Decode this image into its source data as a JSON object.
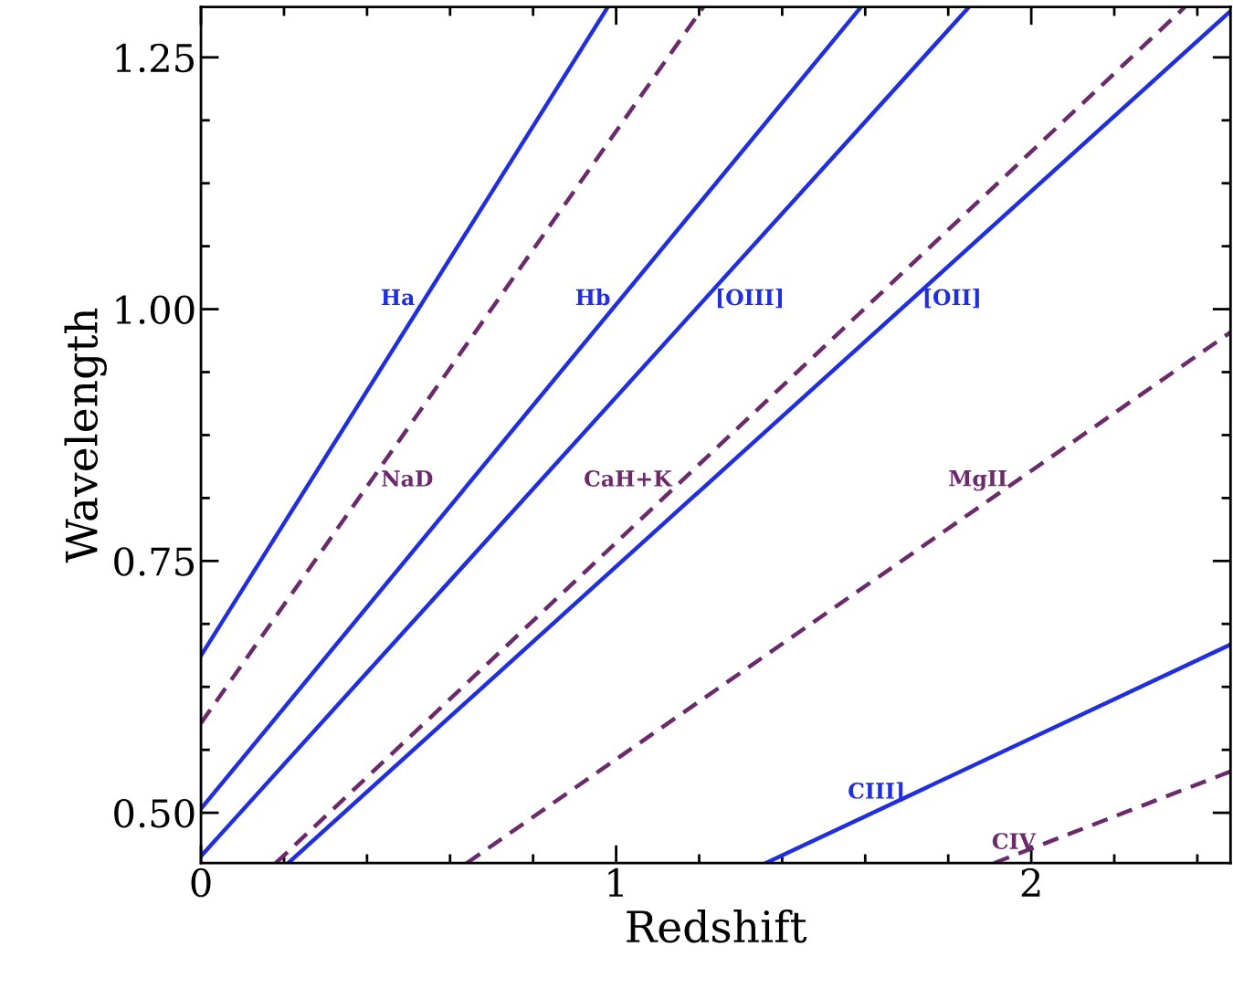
{
  "chart_data": {
    "type": "line",
    "xlabel": "Redshift",
    "ylabel": "Wavelength",
    "xlim": [
      0,
      2.48
    ],
    "ylim": [
      0.45,
      1.3
    ],
    "xticks": [
      0,
      1,
      2
    ],
    "yticks": [
      {
        "value": 0.5,
        "label": "0.50"
      },
      {
        "value": 0.75,
        "label": "0.75"
      },
      {
        "value": 1.0,
        "label": "1.00"
      },
      {
        "value": 1.25,
        "label": "1.25"
      }
    ],
    "grid": false,
    "legend": false,
    "marker": "none",
    "series": [
      {
        "color": "#1f2ee0",
        "line_style": "solid",
        "x": [
          0,
          0.98
        ],
        "values": [
          0.656,
          1.3
        ]
      },
      {
        "color": "#6b2a6b",
        "line_style": "dashed",
        "x": [
          0,
          1.21
        ],
        "values": [
          0.589,
          1.3
        ]
      },
      {
        "color": "#1f2ee0",
        "line_style": "solid",
        "x": [
          0,
          1.59
        ],
        "values": [
          0.504,
          1.3
        ]
      },
      {
        "color": "#1f2ee0",
        "line_style": "solid",
        "x": [
          0,
          1.85
        ],
        "values": [
          0.457,
          1.3
        ]
      },
      {
        "color": "#6b2a6b",
        "line_style": "dashed",
        "x": [
          0.18,
          2.37
        ],
        "values": [
          0.45,
          1.3
        ]
      },
      {
        "color": "#1f2ee0",
        "line_style": "solid",
        "x": [
          0.21,
          2.48
        ],
        "values": [
          0.45,
          1.296
        ]
      },
      {
        "color": "#6b2a6b",
        "line_style": "dashed",
        "x": [
          0.64,
          2.48
        ],
        "values": [
          0.45,
          0.977
        ]
      },
      {
        "color": "#1f2ee0",
        "line_style": "solid",
        "x": [
          1.36,
          2.48
        ],
        "values": [
          0.45,
          0.667
        ]
      },
      {
        "color": "#6b2a6b",
        "line_style": "dashed",
        "x": [
          1.91,
          2.48
        ],
        "values": [
          0.45,
          0.541
        ]
      }
    ],
    "annotations": [
      {
        "text": "Ha",
        "x": 0.54,
        "y": 1.01
      },
      {
        "text": "NaD",
        "x": 0.409,
        "y": 0.83
      },
      {
        "text": "Hb",
        "x": 1.011,
        "y": 1.01
      },
      {
        "text": "[OIII]",
        "x": 1.214,
        "y": 1.01
      },
      {
        "text": "CaH+K",
        "x": 1.159,
        "y": 0.83
      },
      {
        "text": "[OII]",
        "x": 1.713,
        "y": 1.01
      },
      {
        "text": "MgII",
        "x": 1.967,
        "y": 0.83
      },
      {
        "text": "CIII]",
        "x": 1.721,
        "y": 0.52
      },
      {
        "text": "CIV",
        "x": 2.035,
        "y": 0.47
      }
    ]
  }
}
